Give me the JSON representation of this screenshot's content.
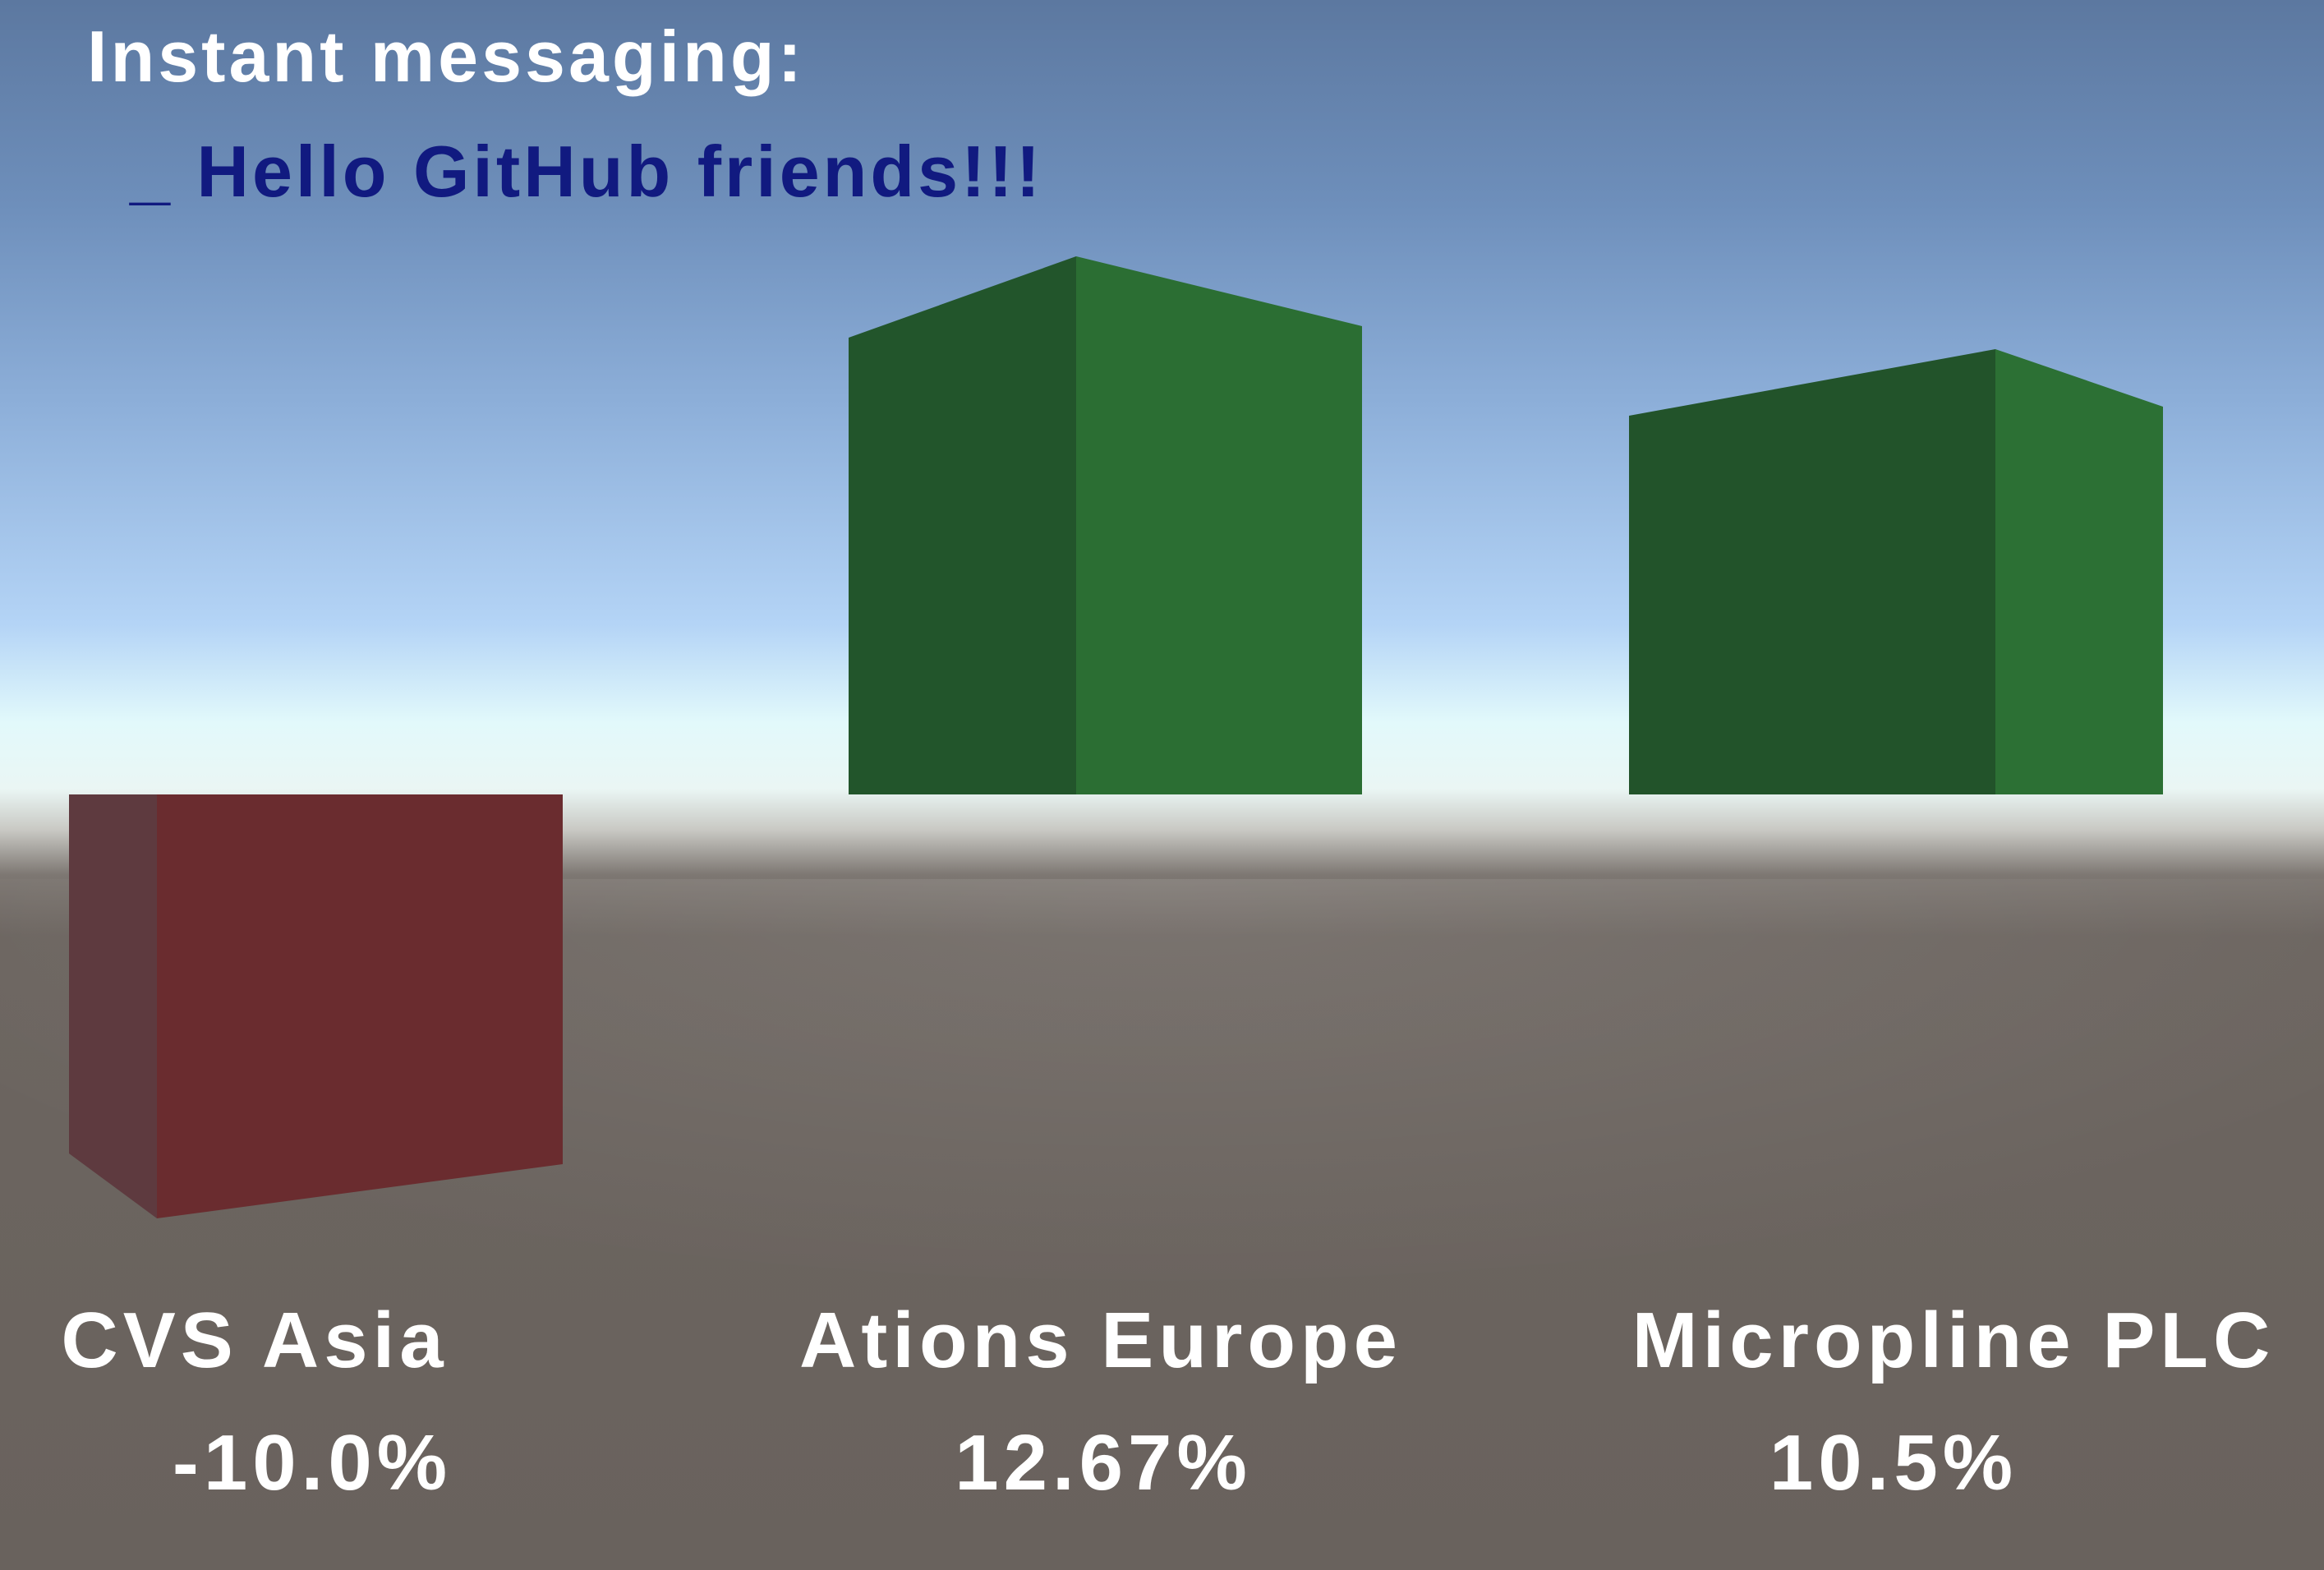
{
  "hud": {
    "label": "Instant messaging:",
    "message": "_ Hello GitHub friends!!!"
  },
  "stocks": [
    {
      "name": "CVS Asia",
      "change": "-10.0%",
      "value": -10.0,
      "color": "#6a2c2f"
    },
    {
      "name": "Ations Europe",
      "change": "12.67%",
      "value": 12.67,
      "color": "#2b6e33"
    },
    {
      "name": "Micropline PLC",
      "change": "10.5%",
      "value": 10.5,
      "color": "#2a6c31"
    }
  ],
  "colors": {
    "positive": "#2b6e33",
    "negative": "#6a2c2f",
    "label_text": "#ffffff",
    "message_text": "#111a80"
  }
}
